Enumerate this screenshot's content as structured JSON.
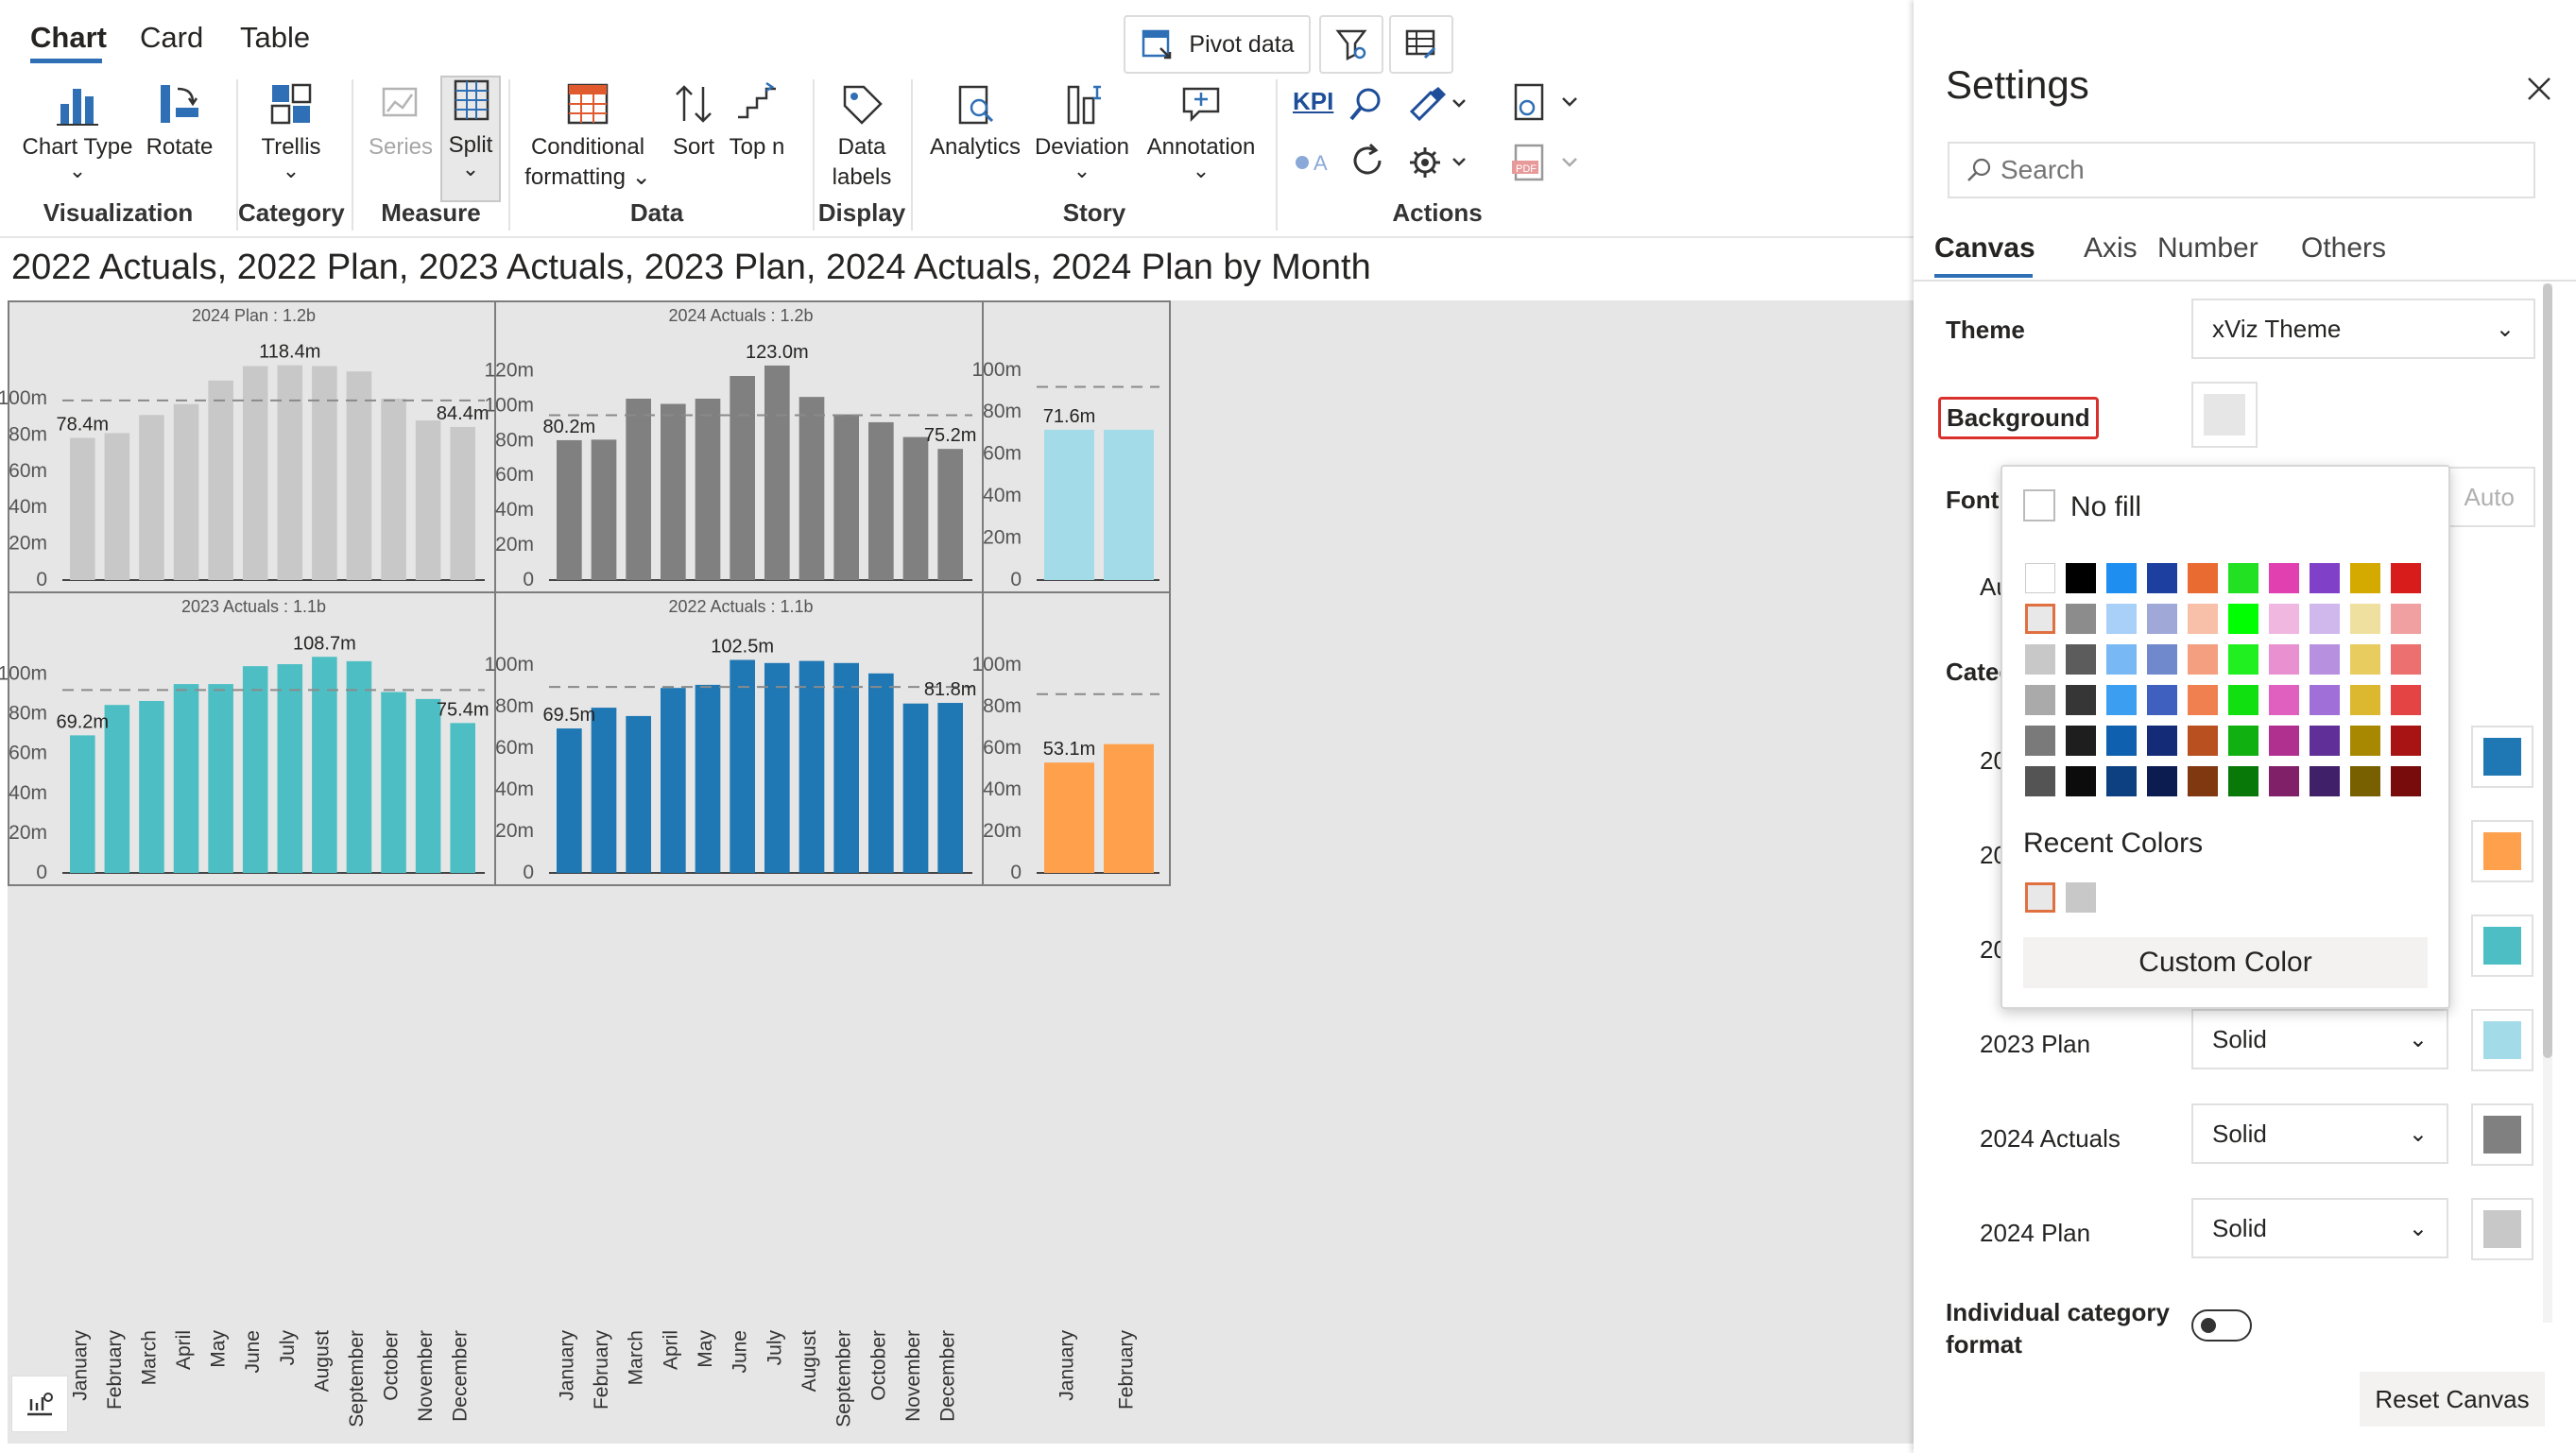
{
  "ribbon": {
    "tabs": [
      "Chart",
      "Card",
      "Table"
    ],
    "top_buttons": {
      "pivot": "Pivot data"
    },
    "buttons": {
      "chart_type": "Chart Type",
      "rotate": "Rotate",
      "trellis": "Trellis",
      "series": "Series",
      "split": "Split",
      "conditional_1": "Conditional",
      "conditional_2": "formatting",
      "sort": "Sort",
      "topn": "Top n",
      "data_labels_1": "Data",
      "data_labels_2": "labels",
      "analytics": "Analytics",
      "deviation": "Deviation",
      "annotation": "Annotation",
      "kpi": "KPI"
    },
    "groups": {
      "visualization": "Visualization",
      "category": "Category",
      "measure": "Measure",
      "data": "Data",
      "display": "Display",
      "story": "Story",
      "actions": "Actions"
    }
  },
  "chart_title": "2022 Actuals, 2022 Plan, 2023 Actuals, 2023 Plan, 2024 Actuals, 2024 Plan by Month",
  "chart_data": [
    {
      "type": "bar",
      "title": "2024 Plan :  1.2b",
      "series_name": "2024 Plan",
      "color": "#c8c8c8",
      "categories": [
        "January",
        "February",
        "March",
        "April",
        "May",
        "June",
        "July",
        "August",
        "September",
        "October",
        "November",
        "December"
      ],
      "values": [
        78.4,
        81,
        91,
        97,
        110,
        118,
        118.4,
        118,
        115,
        100,
        88,
        84.4
      ],
      "yticks": [
        "0",
        "20m",
        "40m",
        "60m",
        "80m",
        "100m"
      ],
      "ylim": [
        0,
        125
      ],
      "avg_line": 99,
      "labels": [
        {
          "i": 0,
          "text": "78.4m"
        },
        {
          "i": 6,
          "text": "118.4m"
        },
        {
          "i": 11,
          "text": "84.4m"
        }
      ]
    },
    {
      "type": "bar",
      "title": "2024 Actuals :  1.2b",
      "series_name": "2024 Actuals",
      "color": "#808080",
      "categories": [
        "January",
        "February",
        "March",
        "April",
        "May",
        "June",
        "July",
        "August",
        "September",
        "October",
        "November",
        "December"
      ],
      "values": [
        80.2,
        80.5,
        104,
        101,
        104,
        117,
        123.0,
        105,
        95,
        90.5,
        82,
        75.2
      ],
      "yticks": [
        "0",
        "20m",
        "40m",
        "60m",
        "80m",
        "100m",
        "120m"
      ],
      "ylim": [
        0,
        130
      ],
      "avg_line": 94.5,
      "labels": [
        {
          "i": 0,
          "text": "80.2m"
        },
        {
          "i": 6,
          "text": "123.0m"
        },
        {
          "i": 11,
          "text": "75.2m"
        }
      ]
    },
    {
      "type": "bar",
      "title": "2023 Actuals :  1.1b",
      "series_name": "2023 Actuals",
      "color": "#4dbfc4",
      "categories": [
        "January",
        "February",
        "March",
        "April",
        "May",
        "June",
        "July",
        "August",
        "September",
        "October",
        "November",
        "December"
      ],
      "values": [
        69.2,
        84.5,
        86.5,
        95,
        95,
        104,
        105,
        108.7,
        106.5,
        91,
        87.5,
        75.4
      ],
      "yticks": [
        "0",
        "20m",
        "40m",
        "60m",
        "80m",
        "100m"
      ],
      "ylim": [
        0,
        115
      ],
      "avg_line": 92,
      "labels": [
        {
          "i": 0,
          "text": "69.2m"
        },
        {
          "i": 7,
          "text": "108.7m"
        },
        {
          "i": 11,
          "text": "75.4m"
        }
      ]
    },
    {
      "type": "bar",
      "title": "2022 Actuals :  1.1b",
      "series_name": "2022 Actuals",
      "color": "#1f77b4",
      "categories": [
        "January",
        "February",
        "March",
        "April",
        "May",
        "June",
        "July",
        "August",
        "September",
        "October",
        "November",
        "December"
      ],
      "values": [
        69.5,
        79.5,
        75.5,
        89,
        90.5,
        102.5,
        101,
        102,
        101,
        96,
        81.5,
        81.8
      ],
      "yticks": [
        "0",
        "20m",
        "40m",
        "60m",
        "80m",
        "100m"
      ],
      "ylim": [
        0,
        110
      ],
      "avg_line": 89.5,
      "labels": [
        {
          "i": 0,
          "text": "69.5m"
        },
        {
          "i": 5,
          "text": "102.5m"
        },
        {
          "i": 11,
          "text": "81.8m"
        }
      ]
    },
    {
      "type": "bar",
      "title": "",
      "series_name": "2023 Plan",
      "color": "#a3dbe8",
      "categories": [
        "January",
        "February"
      ],
      "values": [
        71.6,
        71.6
      ],
      "yticks": [
        "0",
        "20m",
        "40m",
        "60m",
        "80m",
        "100m"
      ],
      "ylim": [
        0,
        108
      ],
      "avg_line": 92,
      "labels": [
        {
          "i": 0,
          "text": "71.6m"
        }
      ]
    },
    {
      "type": "bar",
      "title": "",
      "series_name": "2022 Plan",
      "color": "#ffa04d",
      "categories": [
        "January",
        "February"
      ],
      "values": [
        53.1,
        62
      ],
      "yticks": [
        "0",
        "20m",
        "40m",
        "60m",
        "80m",
        "100m"
      ],
      "ylim": [
        0,
        110
      ],
      "avg_line": 86,
      "labels": [
        {
          "i": 0,
          "text": "53.1m"
        }
      ]
    }
  ],
  "settings": {
    "title": "Settings",
    "search_placeholder": "Search",
    "tabs": [
      "Canvas",
      "Axis",
      "Number",
      "Others"
    ],
    "theme_label": "Theme",
    "theme_value": "xViz Theme",
    "background_label": "Background",
    "font_label": "Font",
    "font_value_partial": "Auto",
    "auto_label_partial": "Au",
    "category_label_partial": "Categ",
    "rows": [
      {
        "label": "20",
        "value": "",
        "color": "#1f77b4"
      },
      {
        "label": "20",
        "value": "",
        "color": "#ffa04d"
      },
      {
        "label": "20",
        "value": "",
        "color": "#4dbfc4"
      },
      {
        "label": "2023 Plan",
        "value": "Solid",
        "color": "#a3dbe8"
      },
      {
        "label": "2024 Actuals",
        "value": "Solid",
        "color": "#808080"
      },
      {
        "label": "2024 Plan",
        "value": "Solid",
        "color": "#c8c8c8"
      }
    ],
    "individual_1": "Individual category",
    "individual_2": "format",
    "reset": "Reset Canvas"
  },
  "color_picker": {
    "no_fill": "No fill",
    "recent_label": "Recent Colors",
    "custom": "Custom Color",
    "palette": [
      [
        "#ffffff",
        "#000000",
        "#1e8ef0",
        "#1c3fa0",
        "#ea6b32",
        "#22e022",
        "#e040b0",
        "#8040c8",
        "#d4aa00",
        "#d81c1c"
      ],
      [
        "#e8e8e8",
        "#8c8c8c",
        "#a8d0f8",
        "#a0a8d8",
        "#f8c0a8",
        "#00ff00",
        "#f0b8e0",
        "#d0b8ec",
        "#f0e0a0",
        "#f0a0a0"
      ],
      [
        "#c8c8c8",
        "#5c5c5c",
        "#78b8f4",
        "#7088cc",
        "#f4a080",
        "#20f020",
        "#e890d0",
        "#b890e0",
        "#e8cc60",
        "#ec7070"
      ],
      [
        "#aaaaaa",
        "#363636",
        "#3c9ef0",
        "#4060c0",
        "#f08050",
        "#10e010",
        "#e060c0",
        "#a070d8",
        "#dcb830",
        "#e44444"
      ],
      [
        "#7a7a7a",
        "#1e1e1e",
        "#1060b0",
        "#142c78",
        "#b85020",
        "#10b010",
        "#b03090",
        "#603098",
        "#a88800",
        "#a81414"
      ],
      [
        "#545454",
        "#0c0c0c",
        "#0c4080",
        "#0c1c50",
        "#803810",
        "#087808",
        "#802068",
        "#402068",
        "#786000",
        "#780c0c"
      ]
    ],
    "recent": [
      "#e8e8e8",
      "#c8c8c8"
    ]
  }
}
